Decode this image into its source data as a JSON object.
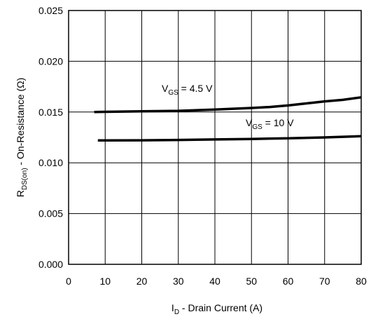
{
  "chart_data": {
    "type": "line",
    "title": "",
    "xlabel": {
      "main": "I",
      "sub": "D",
      "rest": " - Drain Current (A)"
    },
    "ylabel": {
      "main": "R",
      "sub": "DS(on)",
      "rest": " - On-Resistance (Ω)"
    },
    "xlim": [
      0,
      80
    ],
    "ylim": [
      0.0,
      0.025
    ],
    "xticks": [
      "0",
      "10",
      "20",
      "30",
      "40",
      "50",
      "60",
      "70",
      "80"
    ],
    "yticks": [
      "0.000",
      "0.005",
      "0.010",
      "0.015",
      "0.020",
      "0.025"
    ],
    "grid": true,
    "series": [
      {
        "label": {
          "main": "V",
          "sub": "GS",
          "rest": " = 4.5 V"
        },
        "x": [
          7,
          10,
          20,
          30,
          40,
          50,
          55,
          60,
          65,
          70,
          75,
          80
        ],
        "y": [
          0.015,
          0.01502,
          0.01507,
          0.01512,
          0.01525,
          0.0154,
          0.0155,
          0.01565,
          0.01585,
          0.01605,
          0.0162,
          0.01645
        ]
      },
      {
        "label": {
          "main": "V",
          "sub": "GS",
          "rest": " = 10 V"
        },
        "x": [
          8,
          10,
          20,
          30,
          40,
          50,
          60,
          70,
          80
        ],
        "y": [
          0.0122,
          0.0122,
          0.01222,
          0.01225,
          0.0123,
          0.01235,
          0.01242,
          0.0125,
          0.01262
        ]
      }
    ]
  }
}
